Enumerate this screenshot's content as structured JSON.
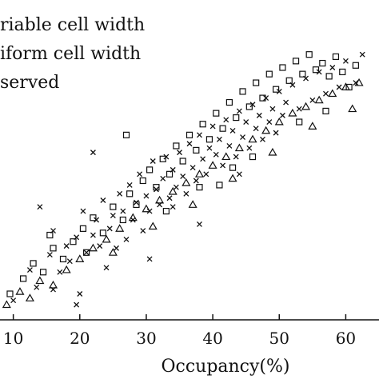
{
  "chart_data": {
    "type": "scatter",
    "xlabel": "Occupancy(%)",
    "ylabel": "",
    "xlim": [
      8,
      65
    ],
    "ylim": [
      8,
      130
    ],
    "x_ticks": [
      10,
      20,
      30,
      40,
      50,
      60
    ],
    "x_tick_labels": [
      "10",
      "20",
      "30",
      "40",
      "50",
      "60"
    ],
    "legend_placement": "top-left",
    "colors": {
      "markers": "#111111",
      "axis": "#111111"
    },
    "series": [
      {
        "name": "riable cell width",
        "marker": "x",
        "points": [
          [
            10.0,
            14.0
          ],
          [
            12.5,
            28.0
          ],
          [
            13.5,
            20.0
          ],
          [
            15.5,
            35.0
          ],
          [
            16.0,
            46.0
          ],
          [
            17.0,
            27.0
          ],
          [
            18.0,
            39.0
          ],
          [
            18.5,
            32.0
          ],
          [
            19.5,
            43.0
          ],
          [
            20.0,
            17.0
          ],
          [
            20.5,
            55.0
          ],
          [
            21.0,
            36.0
          ],
          [
            22.0,
            44.0
          ],
          [
            22.5,
            51.0
          ],
          [
            23.0,
            39.0
          ],
          [
            23.5,
            60.0
          ],
          [
            24.5,
            47.0
          ],
          [
            25.0,
            53.0
          ],
          [
            25.5,
            38.0
          ],
          [
            26.0,
            63.0
          ],
          [
            26.5,
            55.0
          ],
          [
            27.0,
            42.0
          ],
          [
            27.5,
            67.0
          ],
          [
            28.0,
            51.0
          ],
          [
            28.5,
            59.0
          ],
          [
            29.0,
            72.0
          ],
          [
            29.5,
            46.0
          ],
          [
            30.0,
            62.0
          ],
          [
            30.5,
            55.0
          ],
          [
            31.0,
            78.0
          ],
          [
            31.5,
            65.0
          ],
          [
            32.0,
            58.0
          ],
          [
            32.5,
            70.0
          ],
          [
            33.0,
            80.0
          ],
          [
            33.5,
            61.0
          ],
          [
            34.0,
            74.0
          ],
          [
            34.5,
            66.0
          ],
          [
            35.0,
            82.0
          ],
          [
            35.5,
            71.0
          ],
          [
            36.0,
            63.0
          ],
          [
            36.5,
            86.0
          ],
          [
            37.0,
            75.0
          ],
          [
            37.5,
            69.0
          ],
          [
            38.0,
            90.0
          ],
          [
            38.5,
            79.0
          ],
          [
            39.0,
            72.0
          ],
          [
            39.5,
            84.0
          ],
          [
            40.0,
            94.0
          ],
          [
            40.5,
            81.0
          ],
          [
            41.0,
            88.0
          ],
          [
            41.5,
            76.0
          ],
          [
            42.0,
            97.0
          ],
          [
            42.5,
            85.0
          ],
          [
            43.0,
            92.0
          ],
          [
            43.5,
            80.0
          ],
          [
            44.0,
            101.0
          ],
          [
            44.5,
            89.0
          ],
          [
            45.0,
            96.0
          ],
          [
            45.5,
            84.0
          ],
          [
            46.0,
            104.0
          ],
          [
            46.5,
            93.0
          ],
          [
            47.0,
            99.0
          ],
          [
            47.5,
            88.0
          ],
          [
            48.0,
            107.0
          ],
          [
            48.5,
            96.0
          ],
          [
            49.0,
            102.0
          ],
          [
            49.5,
            91.0
          ],
          [
            50.0,
            110.0
          ],
          [
            50.5,
            99.0
          ],
          [
            51.0,
            105.0
          ],
          [
            52.0,
            113.0
          ],
          [
            53.0,
            102.0
          ],
          [
            54.0,
            116.0
          ],
          [
            55.0,
            106.0
          ],
          [
            56.0,
            119.0
          ],
          [
            57.0,
            109.0
          ],
          [
            58.0,
            121.0
          ],
          [
            59.0,
            112.0
          ],
          [
            60.0,
            124.0
          ],
          [
            61.5,
            114.0
          ],
          [
            16.0,
            19.0
          ],
          [
            24.0,
            29.0
          ],
          [
            34.0,
            57.0
          ],
          [
            44.0,
            72.0
          ],
          [
            22.0,
            82.0
          ],
          [
            14.0,
            57.0
          ],
          [
            19.5,
            12.0
          ],
          [
            30.5,
            33.0
          ],
          [
            38.0,
            49.0
          ],
          [
            62.5,
            127.0
          ]
        ]
      },
      {
        "name": "iform cell width",
        "marker": "square",
        "points": [
          [
            9.5,
            17.0
          ],
          [
            11.5,
            24.0
          ],
          [
            13.0,
            31.0
          ],
          [
            14.5,
            27.0
          ],
          [
            16.0,
            38.0
          ],
          [
            17.5,
            33.0
          ],
          [
            19.0,
            41.0
          ],
          [
            20.5,
            47.0
          ],
          [
            22.0,
            52.0
          ],
          [
            23.5,
            45.0
          ],
          [
            25.0,
            57.0
          ],
          [
            26.5,
            51.0
          ],
          [
            27.5,
            63.0
          ],
          [
            28.5,
            58.0
          ],
          [
            29.5,
            69.0
          ],
          [
            30.5,
            74.0
          ],
          [
            31.5,
            66.0
          ],
          [
            32.5,
            79.0
          ],
          [
            33.5,
            72.0
          ],
          [
            34.5,
            85.0
          ],
          [
            35.5,
            78.0
          ],
          [
            36.5,
            90.0
          ],
          [
            37.5,
            83.0
          ],
          [
            38.5,
            95.0
          ],
          [
            39.5,
            88.0
          ],
          [
            40.5,
            100.0
          ],
          [
            41.5,
            93.0
          ],
          [
            42.5,
            105.0
          ],
          [
            43.5,
            98.0
          ],
          [
            44.5,
            110.0
          ],
          [
            45.5,
            103.0
          ],
          [
            46.5,
            114.0
          ],
          [
            47.5,
            107.0
          ],
          [
            48.5,
            118.0
          ],
          [
            49.5,
            111.0
          ],
          [
            50.5,
            121.0
          ],
          [
            51.5,
            115.0
          ],
          [
            52.5,
            124.0
          ],
          [
            53.5,
            118.0
          ],
          [
            54.5,
            127.0
          ],
          [
            55.5,
            120.0
          ],
          [
            56.5,
            123.0
          ],
          [
            57.5,
            117.0
          ],
          [
            58.5,
            126.0
          ],
          [
            59.5,
            119.0
          ],
          [
            60.5,
            112.0
          ],
          [
            61.5,
            122.0
          ],
          [
            27.0,
            90.0
          ],
          [
            41.0,
            67.0
          ],
          [
            46.0,
            80.0
          ],
          [
            15.5,
            44.0
          ],
          [
            21.0,
            36.0
          ],
          [
            33.0,
            55.0
          ],
          [
            38.0,
            66.0
          ],
          [
            43.0,
            75.0
          ],
          [
            53.0,
            96.0
          ],
          [
            57.0,
            101.0
          ]
        ]
      },
      {
        "name": "served",
        "marker": "triangle",
        "points": [
          [
            9.0,
            12.0
          ],
          [
            11.0,
            18.0
          ],
          [
            12.5,
            15.0
          ],
          [
            14.0,
            23.0
          ],
          [
            16.0,
            21.0
          ],
          [
            18.0,
            28.0
          ],
          [
            20.0,
            33.0
          ],
          [
            22.0,
            38.0
          ],
          [
            24.0,
            42.0
          ],
          [
            26.0,
            47.0
          ],
          [
            28.0,
            52.0
          ],
          [
            30.0,
            56.0
          ],
          [
            32.0,
            60.0
          ],
          [
            34.0,
            64.0
          ],
          [
            36.0,
            68.0
          ],
          [
            38.0,
            72.0
          ],
          [
            40.0,
            76.0
          ],
          [
            42.0,
            80.0
          ],
          [
            44.0,
            84.0
          ],
          [
            46.0,
            88.0
          ],
          [
            48.0,
            92.0
          ],
          [
            50.0,
            96.0
          ],
          [
            52.0,
            100.0
          ],
          [
            54.0,
            103.0
          ],
          [
            56.0,
            106.0
          ],
          [
            58.0,
            109.0
          ],
          [
            60.0,
            112.0
          ],
          [
            62.0,
            114.0
          ],
          [
            25.0,
            36.0
          ],
          [
            31.0,
            48.0
          ],
          [
            37.0,
            58.0
          ],
          [
            43.0,
            70.0
          ],
          [
            49.0,
            82.0
          ],
          [
            55.0,
            94.0
          ],
          [
            61.0,
            102.0
          ]
        ]
      }
    ]
  }
}
